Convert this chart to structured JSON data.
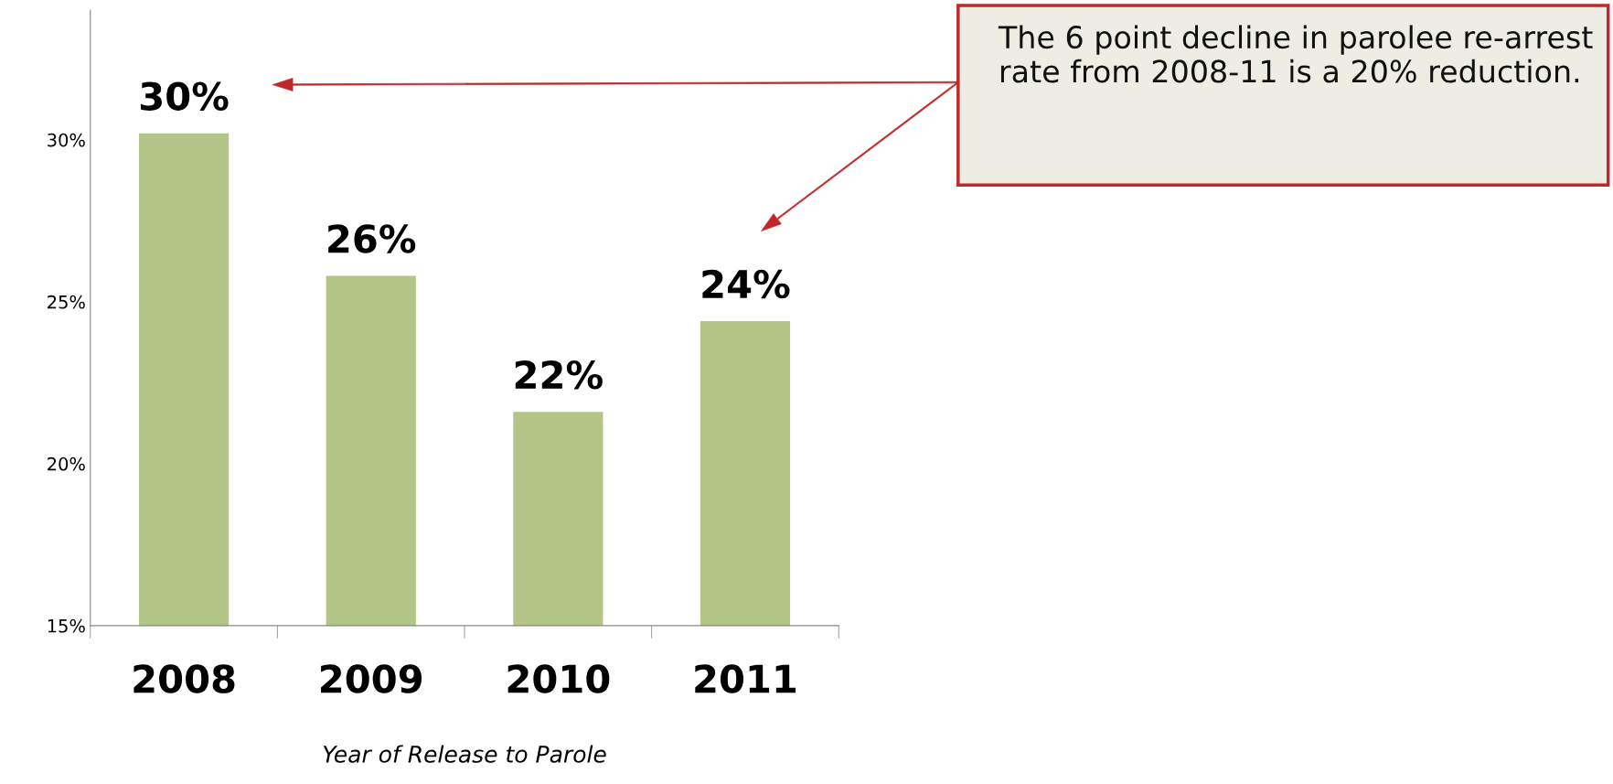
{
  "chart_data": {
    "type": "bar",
    "categories": [
      "2008",
      "2009",
      "2010",
      "2011"
    ],
    "values": [
      30.2,
      25.8,
      21.6,
      24.4
    ],
    "value_labels": [
      "30%",
      "26%",
      "22%",
      "24%"
    ],
    "color": "#b5c588",
    "xlabel": "Year of Release to Parole",
    "ylim": [
      15,
      34
    ],
    "yticks": [
      {
        "value": 15,
        "label": "15%"
      },
      {
        "value": 20,
        "label": "20%"
      },
      {
        "value": 25,
        "label": "25%"
      },
      {
        "value": 30,
        "label": "30%"
      }
    ],
    "annotations": [
      "The 6 point decline in parolee re-arrest rate from 2008-11 is a 20% reduction."
    ],
    "grid": false,
    "legend": false
  }
}
